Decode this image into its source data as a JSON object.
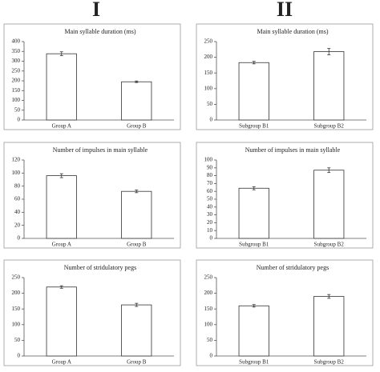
{
  "headers": [
    "I",
    "II"
  ],
  "chart_data": [
    {
      "type": "bar",
      "title": "Main syllable duration (ms)",
      "categories": [
        "Group A",
        "Group B"
      ],
      "values": [
        338,
        195
      ],
      "errors": [
        10,
        4
      ],
      "color": "#ffffff",
      "ylim": [
        0,
        400
      ],
      "yticks": [
        0,
        50,
        100,
        150,
        200,
        250,
        300,
        350,
        400
      ]
    },
    {
      "type": "bar",
      "title": "Main syllable duration (ms)",
      "categories": [
        "Subgroup B1",
        "Subgroup B2"
      ],
      "values": [
        183,
        218
      ],
      "errors": [
        4,
        10
      ],
      "color": "#ffffff",
      "ylim": [
        0,
        250
      ],
      "yticks": [
        0,
        50,
        100,
        150,
        200,
        250
      ]
    },
    {
      "type": "bar",
      "title": "Number of impulses in main syllable",
      "categories": [
        "Group A",
        "Group B"
      ],
      "values": [
        96,
        72
      ],
      "errors": [
        3,
        2
      ],
      "color": "#ffffff",
      "ylim": [
        0,
        120
      ],
      "yticks": [
        0,
        20,
        40,
        60,
        80,
        100,
        120
      ]
    },
    {
      "type": "bar",
      "title": "Number of impulses in main syllable",
      "categories": [
        "Subgroup B1",
        "Subgroup B2"
      ],
      "values": [
        64,
        87
      ],
      "errors": [
        2,
        3
      ],
      "color": "#ffffff",
      "ylim": [
        0,
        100
      ],
      "yticks": [
        0,
        10,
        20,
        30,
        40,
        50,
        60,
        70,
        80,
        90,
        100
      ]
    },
    {
      "type": "bar",
      "title": "Number of stridulatory pegs",
      "categories": [
        "Group A",
        "Group B"
      ],
      "values": [
        220,
        163
      ],
      "errors": [
        4,
        5
      ],
      "color": "#ffffff",
      "ylim": [
        0,
        250
      ],
      "yticks": [
        0,
        50,
        100,
        150,
        200,
        250
      ]
    },
    {
      "type": "bar",
      "title": "Number of stridulatory pegs",
      "categories": [
        "Subgroup B1",
        "Subgroup B2"
      ],
      "values": [
        160,
        190
      ],
      "errors": [
        4,
        6
      ],
      "color": "#ffffff",
      "ylim": [
        0,
        250
      ],
      "yticks": [
        0,
        50,
        100,
        150,
        200,
        250
      ]
    }
  ]
}
